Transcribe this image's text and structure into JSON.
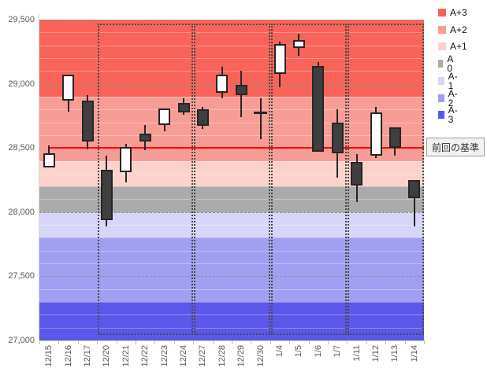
{
  "chart_data": {
    "type": "candlestick",
    "title": "",
    "x_categories": [
      "12/15",
      "12/16",
      "12/17",
      "12/20",
      "12/21",
      "12/22",
      "12/23",
      "12/24",
      "12/27",
      "12/28",
      "12/29",
      "12/30",
      "1/4",
      "1/5",
      "1/6",
      "1/7",
      "1/11",
      "1/12",
      "1/13",
      "1/14"
    ],
    "y_axis": {
      "min": 27000,
      "max": 29500,
      "major_step": 500,
      "minor_step": 100,
      "ticks": [
        {
          "value": 29500,
          "label": "29,500"
        },
        {
          "value": 29000,
          "label": "29,000"
        },
        {
          "value": 28500,
          "label": "28,500"
        },
        {
          "value": 28000,
          "label": "28,000"
        },
        {
          "value": 27500,
          "label": "27,500"
        },
        {
          "value": 27000,
          "label": "27,000"
        }
      ]
    },
    "series": [
      {
        "date": "12/15",
        "open": 28350,
        "high": 28520,
        "low": 28350,
        "close": 28460,
        "direction": "up"
      },
      {
        "date": "12/16",
        "open": 28870,
        "high": 29070,
        "low": 28780,
        "close": 29070,
        "direction": "up"
      },
      {
        "date": "12/17",
        "open": 28870,
        "high": 28910,
        "low": 28490,
        "close": 28550,
        "direction": "down"
      },
      {
        "date": "12/20",
        "open": 28330,
        "high": 28440,
        "low": 27890,
        "close": 27940,
        "direction": "down"
      },
      {
        "date": "12/21",
        "open": 28310,
        "high": 28530,
        "low": 28230,
        "close": 28510,
        "direction": "up"
      },
      {
        "date": "12/22",
        "open": 28610,
        "high": 28680,
        "low": 28480,
        "close": 28550,
        "direction": "down"
      },
      {
        "date": "12/23",
        "open": 28680,
        "high": 28810,
        "low": 28630,
        "close": 28810,
        "direction": "up"
      },
      {
        "date": "12/24",
        "open": 28850,
        "high": 28890,
        "low": 28760,
        "close": 28780,
        "direction": "down"
      },
      {
        "date": "12/27",
        "open": 28800,
        "high": 28820,
        "low": 28650,
        "close": 28670,
        "direction": "down"
      },
      {
        "date": "12/28",
        "open": 28930,
        "high": 29130,
        "low": 28890,
        "close": 29070,
        "direction": "up"
      },
      {
        "date": "12/29",
        "open": 28990,
        "high": 29100,
        "low": 28740,
        "close": 28910,
        "direction": "down"
      },
      {
        "date": "12/30",
        "open": 28780,
        "high": 28890,
        "low": 28570,
        "close": 28780,
        "direction": "flat"
      },
      {
        "date": "1/4",
        "open": 29080,
        "high": 29330,
        "low": 28970,
        "close": 29310,
        "direction": "up"
      },
      {
        "date": "1/5",
        "open": 29280,
        "high": 29390,
        "low": 29220,
        "close": 29340,
        "direction": "up"
      },
      {
        "date": "1/6",
        "open": 29140,
        "high": 29170,
        "low": 28470,
        "close": 28470,
        "direction": "down"
      },
      {
        "date": "1/7",
        "open": 28700,
        "high": 28800,
        "low": 28270,
        "close": 28460,
        "direction": "down"
      },
      {
        "date": "1/11",
        "open": 28390,
        "high": 28450,
        "low": 28080,
        "close": 28210,
        "direction": "down"
      },
      {
        "date": "1/12",
        "open": 28440,
        "high": 28820,
        "low": 28420,
        "close": 28780,
        "direction": "up"
      },
      {
        "date": "1/13",
        "open": 28660,
        "high": 28660,
        "low": 28440,
        "close": 28500,
        "direction": "down"
      },
      {
        "date": "1/14",
        "open": 28250,
        "high": 28250,
        "low": 27890,
        "close": 28110,
        "direction": "down"
      }
    ],
    "bands": [
      {
        "label": "A+3",
        "from": 28900,
        "to": 29500,
        "color": "#f8635a"
      },
      {
        "label": "A+2",
        "from": 28400,
        "to": 28900,
        "color": "#f79d96"
      },
      {
        "label": "A+1",
        "from": 28200,
        "to": 28400,
        "color": "#fbd2cc"
      },
      {
        "label": "A 0",
        "from": 28000,
        "to": 28200,
        "color": "#ababab"
      },
      {
        "label": "A-1",
        "from": 27800,
        "to": 28000,
        "color": "#d7d6f8"
      },
      {
        "label": "A-2",
        "from": 27300,
        "to": 27800,
        "color": "#a09ff1"
      },
      {
        "label": "A-3",
        "from": 27000,
        "to": 27300,
        "color": "#5b57ea"
      }
    ],
    "legend": [
      {
        "label": "A+3",
        "color": "#f8635a"
      },
      {
        "label": "A+2",
        "color": "#f79d96"
      },
      {
        "label": "A+1",
        "color": "#fbd2cc"
      },
      {
        "label": "A 0",
        "color": "#ababab"
      },
      {
        "label": "A-1",
        "color": "#d7d6f8"
      },
      {
        "label": "A-2",
        "color": "#a09ff1"
      },
      {
        "label": "A-3",
        "color": "#5b57ea"
      }
    ],
    "baseline": {
      "value": 28500,
      "label": "前回の基準",
      "color": "#fe0000"
    },
    "group_boxes": [
      {
        "from_index": 3,
        "to_index": 7
      },
      {
        "from_index": 8,
        "to_index": 11
      },
      {
        "from_index": 12,
        "to_index": 15
      },
      {
        "from_index": 16,
        "to_index": 19
      }
    ],
    "candle_colors": {
      "up": "#ffffff",
      "down": "#3f3f3f",
      "outline": "#262626"
    },
    "legend_position": "right",
    "grid": "on"
  }
}
